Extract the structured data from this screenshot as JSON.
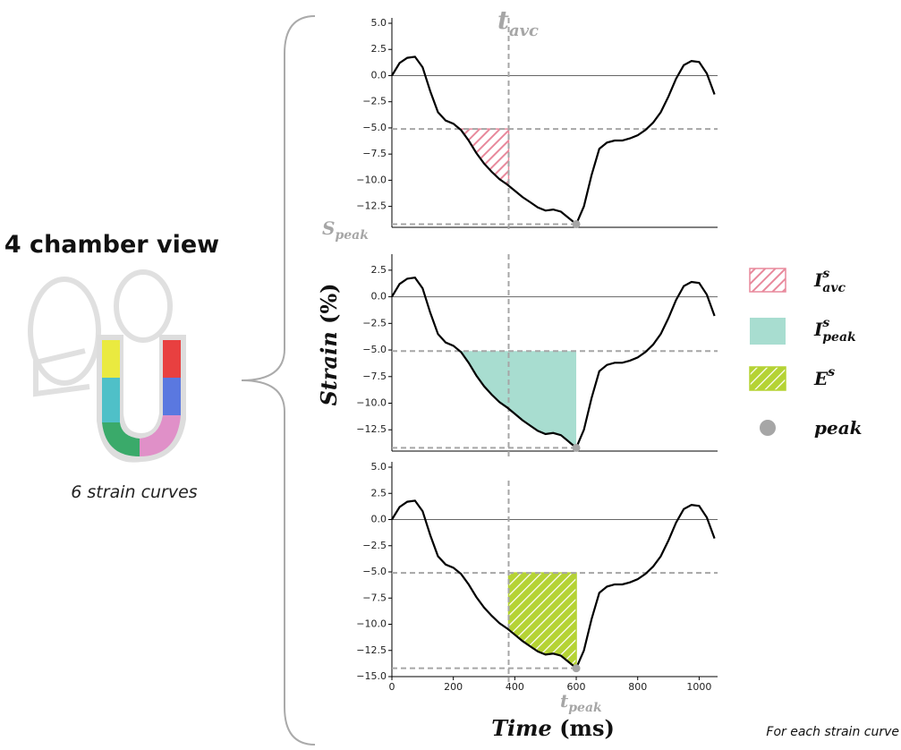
{
  "figure": {
    "view_title": "4 chamber view",
    "view_caption": "6 strain curves",
    "footer": "For each strain curve",
    "y_label": {
      "base": "Strain",
      "unit": "(%)"
    },
    "x_label": {
      "base": "Time",
      "unit": "(ms)"
    },
    "t_avc": {
      "base": "t",
      "sub": "avc"
    },
    "s_peak": {
      "base": "S",
      "sub": "peak"
    },
    "t_peak": {
      "base": "t",
      "sub": "peak"
    },
    "legend": [
      {
        "base": "I",
        "sup": "s",
        "sub": "avc"
      },
      {
        "base": "I",
        "sup": "s",
        "sub": "peak"
      },
      {
        "base": "E",
        "sup": "s"
      },
      {
        "base": "peak"
      }
    ]
  },
  "chart_data": [
    {
      "type": "line",
      "color": "#000000",
      "x": [
        0,
        25,
        50,
        75,
        100,
        125,
        150,
        175,
        200,
        225,
        250,
        275,
        300,
        325,
        350,
        375,
        400,
        425,
        450,
        475,
        500,
        525,
        550,
        575,
        600,
        625,
        650,
        675,
        700,
        725,
        750,
        775,
        800,
        825,
        850,
        875,
        900,
        925,
        950,
        975,
        1000,
        1025,
        1050
      ],
      "values": [
        0,
        1.2,
        1.7,
        1.8,
        0.8,
        -1.5,
        -3.5,
        -4.3,
        -4.6,
        -5.2,
        -6.2,
        -7.4,
        -8.4,
        -9.2,
        -9.9,
        -10.4,
        -11,
        -11.6,
        -12.1,
        -12.6,
        -12.9,
        -12.8,
        -13,
        -13.6,
        -14.2,
        -12.5,
        -9.5,
        -7,
        -6.4,
        -6.2,
        -6.2,
        -6,
        -5.7,
        -5.2,
        -4.5,
        -3.5,
        -2,
        -0.3,
        1,
        1.4,
        1.3,
        0.2,
        -1.8
      ],
      "xlim": [
        0,
        1060
      ],
      "ylim": [
        -14.5,
        5
      ],
      "yticks": [
        {
          "value": 5,
          "label": "5.0"
        },
        {
          "value": 2.5,
          "label": "2.5"
        },
        {
          "value": 0,
          "label": "0.0"
        },
        {
          "value": -2.5,
          "label": "−2.5"
        },
        {
          "value": -5,
          "label": "−5.0"
        },
        {
          "value": -7.5,
          "label": "−7.5"
        },
        {
          "value": -10,
          "label": "−10.0"
        },
        {
          "value": -12.5,
          "label": "−12.5"
        }
      ],
      "threshold": -5.1,
      "peak": {
        "x": 600,
        "y": -14.2
      },
      "vline": 380,
      "shade_x": [
        220,
        380
      ],
      "shade_color": "#e8899c",
      "shade_hatch": true
    },
    {
      "type": "line",
      "color": "#000000",
      "x": [
        0,
        25,
        50,
        75,
        100,
        125,
        150,
        175,
        200,
        225,
        250,
        275,
        300,
        325,
        350,
        375,
        400,
        425,
        450,
        475,
        500,
        525,
        550,
        575,
        600,
        625,
        650,
        675,
        700,
        725,
        750,
        775,
        800,
        825,
        850,
        875,
        900,
        925,
        950,
        975,
        1000,
        1025,
        1050
      ],
      "values": [
        0,
        1.2,
        1.7,
        1.8,
        0.8,
        -1.5,
        -3.5,
        -4.3,
        -4.6,
        -5.2,
        -6.2,
        -7.4,
        -8.4,
        -9.2,
        -9.9,
        -10.4,
        -11,
        -11.6,
        -12.1,
        -12.6,
        -12.9,
        -12.8,
        -13,
        -13.6,
        -14.2,
        -12.5,
        -9.5,
        -7,
        -6.4,
        -6.2,
        -6.2,
        -6,
        -5.7,
        -5.2,
        -4.5,
        -3.5,
        -2,
        -0.3,
        1,
        1.4,
        1.3,
        0.2,
        -1.8
      ],
      "xlim": [
        0,
        1060
      ],
      "ylim": [
        -14.5,
        3.5
      ],
      "yticks": [
        {
          "value": 2.5,
          "label": "2.5"
        },
        {
          "value": 0,
          "label": "0.0"
        },
        {
          "value": -2.5,
          "label": "−2.5"
        },
        {
          "value": -5,
          "label": "−5.0"
        },
        {
          "value": -7.5,
          "label": "−7.5"
        },
        {
          "value": -10,
          "label": "−10.0"
        },
        {
          "value": -12.5,
          "label": "−12.5"
        }
      ],
      "threshold": -5.1,
      "peak": {
        "x": 600,
        "y": -14.2
      },
      "vline": 380,
      "shade_x": [
        220,
        600
      ],
      "shade_color": "#a8ddd0",
      "shade_hatch": false
    },
    {
      "type": "line",
      "color": "#000000",
      "x": [
        0,
        25,
        50,
        75,
        100,
        125,
        150,
        175,
        200,
        225,
        250,
        275,
        300,
        325,
        350,
        375,
        400,
        425,
        450,
        475,
        500,
        525,
        550,
        575,
        600,
        625,
        650,
        675,
        700,
        725,
        750,
        775,
        800,
        825,
        850,
        875,
        900,
        925,
        950,
        975,
        1000,
        1025,
        1050
      ],
      "values": [
        0,
        1.2,
        1.7,
        1.8,
        0.8,
        -1.5,
        -3.5,
        -4.3,
        -4.6,
        -5.2,
        -6.2,
        -7.4,
        -8.4,
        -9.2,
        -9.9,
        -10.4,
        -11,
        -11.6,
        -12.1,
        -12.6,
        -12.9,
        -12.8,
        -13,
        -13.6,
        -14.2,
        -12.5,
        -9.5,
        -7,
        -6.4,
        -6.2,
        -6.2,
        -6,
        -5.7,
        -5.2,
        -4.5,
        -3.5,
        -2,
        -0.3,
        1,
        1.4,
        1.3,
        0.2,
        -1.8
      ],
      "xlim": [
        0,
        1060
      ],
      "ylim": [
        -15,
        5
      ],
      "yticks": [
        {
          "value": 5,
          "label": "5.0"
        },
        {
          "value": 2.5,
          "label": "2.5"
        },
        {
          "value": 0,
          "label": "0.0"
        },
        {
          "value": -2.5,
          "label": "−2.5"
        },
        {
          "value": -5,
          "label": "−5.0"
        },
        {
          "value": -7.5,
          "label": "−7.5"
        },
        {
          "value": -10,
          "label": "−10.0"
        },
        {
          "value": -12.5,
          "label": "−12.5"
        },
        {
          "value": -15,
          "label": "−15.0"
        }
      ],
      "xticks": [
        0,
        200,
        400,
        600,
        800,
        1000
      ],
      "threshold": -5.1,
      "peak": {
        "x": 600,
        "y": -14.2
      },
      "vline": 380,
      "shade_x": [
        380,
        600
      ],
      "shade_color": "#b5d334",
      "shade_hatch": true
    }
  ]
}
